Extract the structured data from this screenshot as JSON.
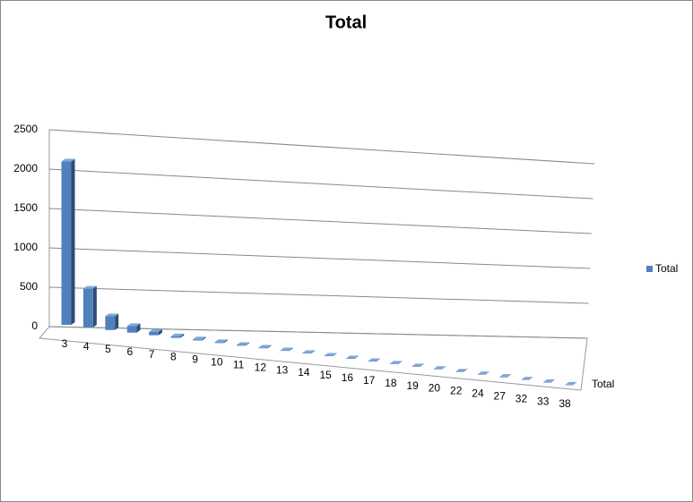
{
  "chart_data": {
    "type": "bar3d",
    "title": "Total",
    "categories": [
      "3",
      "4",
      "5",
      "6",
      "7",
      "8",
      "9",
      "10",
      "11",
      "12",
      "13",
      "14",
      "15",
      "16",
      "17",
      "18",
      "19",
      "20",
      "22",
      "24",
      "27",
      "32",
      "33",
      "38"
    ],
    "series": [
      {
        "name": "Total",
        "color": "#4f81bd",
        "values": [
          2050,
          490,
          175,
          85,
          45,
          20,
          14,
          12,
          10,
          8,
          7,
          6,
          5,
          5,
          4,
          4,
          3,
          3,
          2,
          2,
          2,
          1,
          1,
          1
        ]
      }
    ],
    "depth_label": "Total",
    "ylim": [
      0,
      2500
    ],
    "yticks": [
      0,
      500,
      1000,
      1500,
      2000,
      2500
    ],
    "grid": true,
    "legend": "right"
  }
}
